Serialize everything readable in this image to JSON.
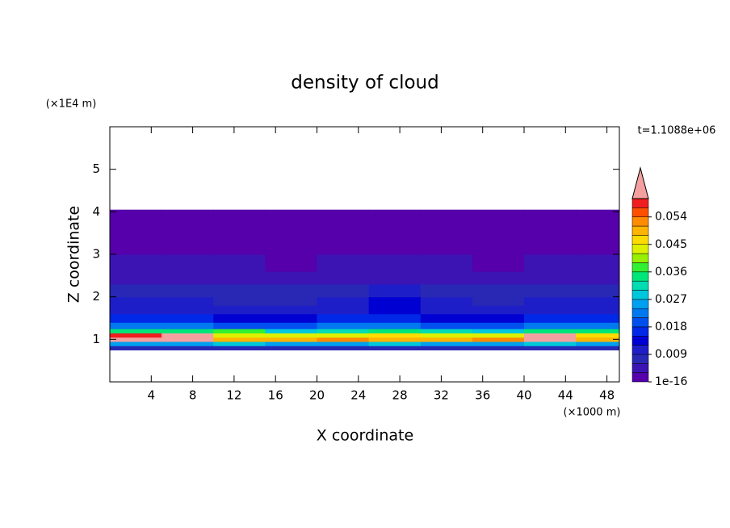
{
  "chart_data": {
    "type": "contour",
    "title": "density of cloud",
    "xlabel": "X coordinate",
    "ylabel": "Z coordinate",
    "x_unit": "(×1000 m)",
    "y_unit": "(×1E4 m)",
    "annotation": "t=1.1088e+06",
    "xlim": [
      0,
      49.2
    ],
    "ylim": [
      0,
      6
    ],
    "xticks": [
      4,
      8,
      12,
      16,
      20,
      24,
      28,
      32,
      36,
      40,
      44,
      48
    ],
    "yticks": [
      1,
      2,
      3,
      4,
      5
    ],
    "clim": [
      1e-16,
      0.06
    ],
    "cticks": [
      1e-16,
      0.009,
      0.018,
      0.027,
      0.036,
      0.045,
      0.054
    ],
    "colors": [
      "#5500aa",
      "#3c14b4",
      "#2828b4",
      "#1e1ec8",
      "#0000d2",
      "#0028e6",
      "#0050f0",
      "#0078f0",
      "#00a0f0",
      "#00c8dc",
      "#00dcb4",
      "#00e678",
      "#32f032",
      "#96f000",
      "#dcf000",
      "#ffdc00",
      "#ffb400",
      "#ff8c00",
      "#ff5000",
      "#f01e1e",
      "#f5a0a0"
    ],
    "x": [
      0,
      5,
      10,
      15,
      20,
      25,
      30,
      35,
      40,
      45,
      49.2
    ],
    "z": [
      0.75,
      0.85,
      0.95,
      1.05,
      1.15,
      1.25,
      1.4,
      1.6,
      1.8,
      2.0,
      2.3,
      2.6,
      3.0,
      3.3,
      4.05
    ],
    "values": [
      [
        0.008,
        0.008,
        0.008,
        0.008,
        0.008,
        0.008,
        0.008,
        0.008,
        0.008,
        0.008
      ],
      [
        0.025,
        0.025,
        0.028,
        0.025,
        0.025,
        0.028,
        0.025,
        0.025,
        0.028,
        0.025
      ],
      [
        0.062,
        0.062,
        0.05,
        0.05,
        0.052,
        0.05,
        0.05,
        0.052,
        0.062,
        0.05
      ],
      [
        0.058,
        0.064,
        0.045,
        0.045,
        0.045,
        0.048,
        0.045,
        0.045,
        0.064,
        0.048
      ],
      [
        0.035,
        0.035,
        0.038,
        0.03,
        0.033,
        0.035,
        0.033,
        0.03,
        0.035,
        0.035
      ],
      [
        0.024,
        0.024,
        0.02,
        0.02,
        0.022,
        0.024,
        0.02,
        0.02,
        0.024,
        0.024
      ],
      [
        0.016,
        0.016,
        0.014,
        0.014,
        0.016,
        0.018,
        0.014,
        0.014,
        0.016,
        0.016
      ],
      [
        0.012,
        0.012,
        0.011,
        0.011,
        0.012,
        0.014,
        0.011,
        0.011,
        0.012,
        0.012
      ],
      [
        0.01,
        0.01,
        0.009,
        0.009,
        0.01,
        0.015,
        0.01,
        0.009,
        0.01,
        0.01
      ],
      [
        0.008,
        0.008,
        0.007,
        0.007,
        0.008,
        0.012,
        0.008,
        0.007,
        0.008,
        0.008
      ],
      [
        0.005,
        0.005,
        0.005,
        0.004,
        0.005,
        0.006,
        0.005,
        0.004,
        0.005,
        0.005
      ],
      [
        0.004,
        0.004,
        0.004,
        0.003,
        0.004,
        0.004,
        0.004,
        0.003,
        0.004,
        0.004
      ],
      [
        0.002,
        0.002,
        0.002,
        0.002,
        0.002,
        0.002,
        0.002,
        0.002,
        0.002,
        0.002
      ],
      [
        0.0005,
        0.0005,
        0.0005,
        0.0005,
        0.0005,
        0.0005,
        0.0005,
        0.0005,
        0.0005,
        0.0005
      ]
    ]
  }
}
